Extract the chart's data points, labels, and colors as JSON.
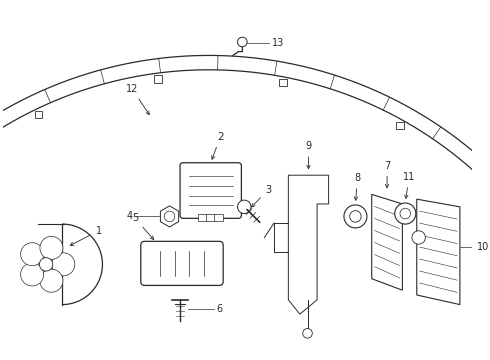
{
  "background_color": "#ffffff",
  "line_color": "#2a2a2a",
  "fig_width": 4.9,
  "fig_height": 3.6,
  "dpi": 100
}
